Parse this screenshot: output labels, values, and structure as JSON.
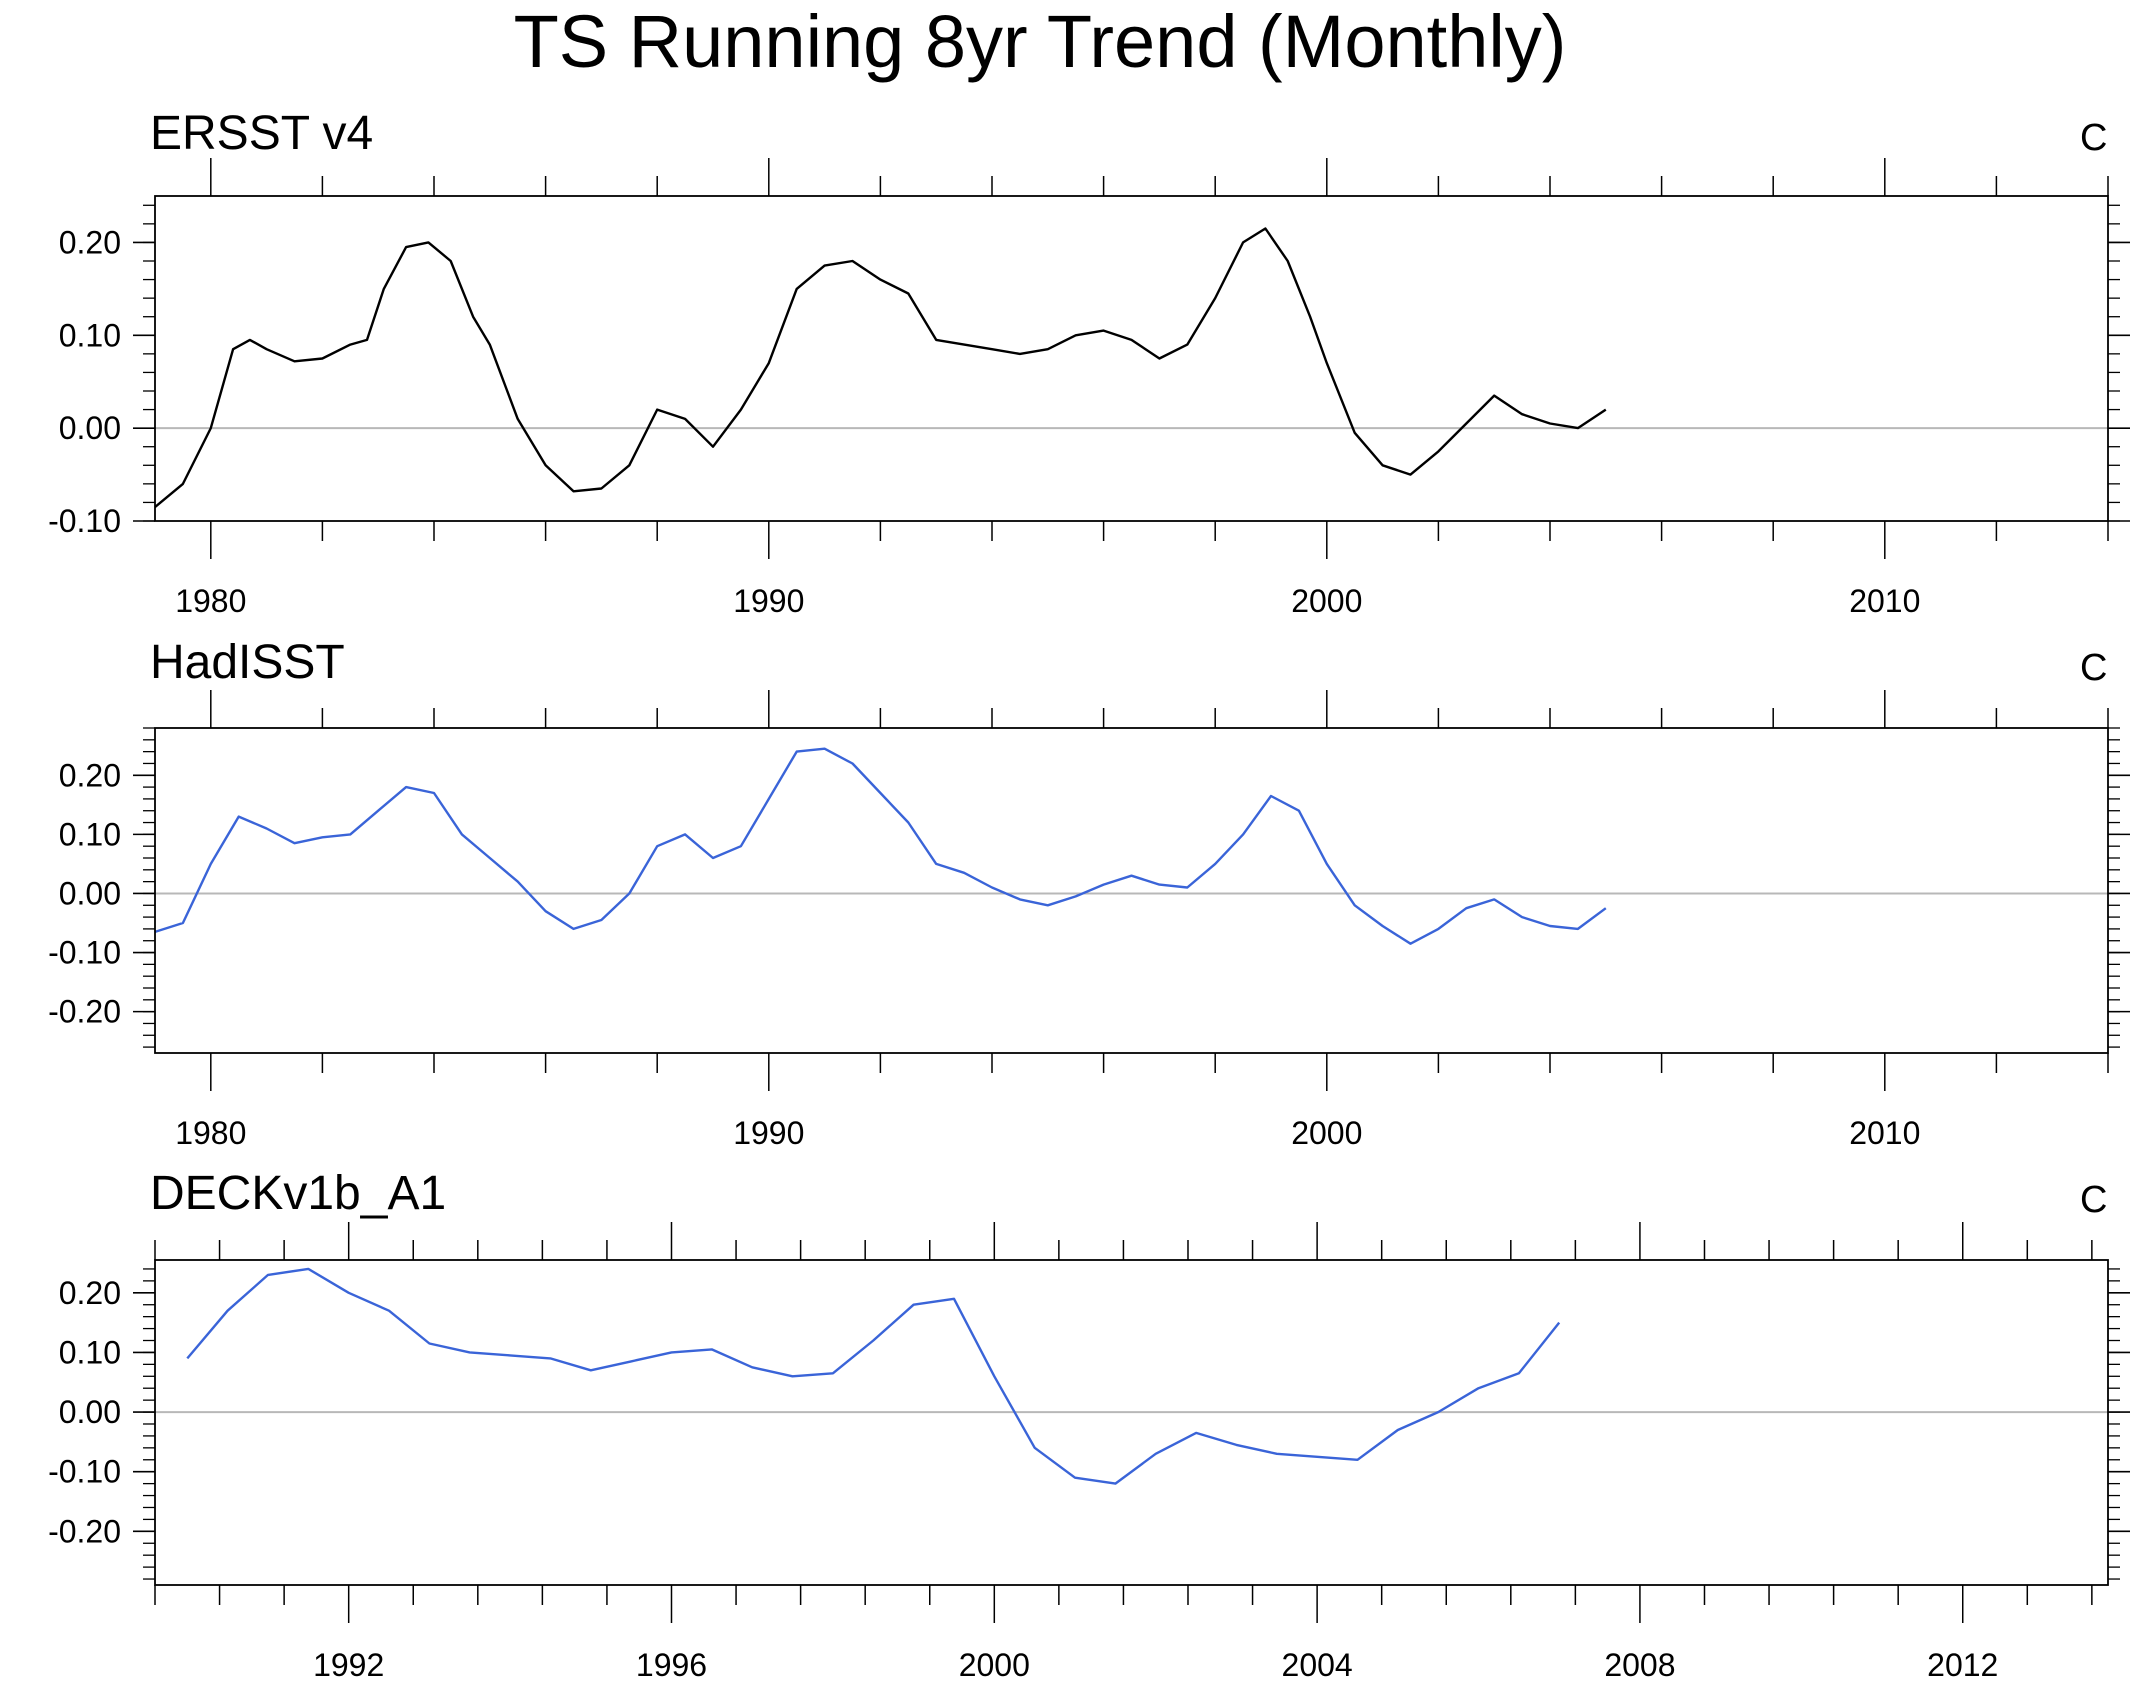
{
  "title": "TS Running 8yr Trend (Monthly)",
  "chart_data": [
    {
      "type": "line",
      "title": "ERSST v4",
      "units": "C",
      "color": "#000000",
      "xlim": [
        1979,
        2014
      ],
      "ylim": [
        -0.1,
        0.25
      ],
      "xticks": [
        1980,
        1990,
        2000,
        2010
      ],
      "yticks": [
        -0.1,
        0.0,
        0.1,
        0.2
      ],
      "ytick_labels": [
        "-0.10",
        "0.00",
        "0.10",
        "0.20"
      ],
      "x": [
        1979.0,
        1979.5,
        1980.0,
        1980.4,
        1980.7,
        1981.0,
        1981.5,
        1982.0,
        1982.5,
        1982.8,
        1983.1,
        1983.5,
        1983.9,
        1984.3,
        1984.7,
        1985.0,
        1985.5,
        1986.0,
        1986.5,
        1987.0,
        1987.5,
        1988.0,
        1988.5,
        1989.0,
        1989.5,
        1990.0,
        1990.5,
        1991.0,
        1991.5,
        1992.0,
        1992.5,
        1993.0,
        1993.5,
        1994.0,
        1994.5,
        1995.0,
        1995.5,
        1996.0,
        1996.5,
        1997.0,
        1997.5,
        1998.0,
        1998.5,
        1998.9,
        1999.3,
        1999.7,
        2000.0,
        2000.5,
        2001.0,
        2001.5,
        2002.0,
        2002.5,
        2003.0,
        2003.5,
        2004.0,
        2004.5,
        2005.0
      ],
      "y": [
        -0.085,
        -0.06,
        0.0,
        0.085,
        0.095,
        0.085,
        0.072,
        0.075,
        0.09,
        0.095,
        0.15,
        0.195,
        0.2,
        0.18,
        0.12,
        0.09,
        0.01,
        -0.04,
        -0.068,
        -0.065,
        -0.04,
        0.02,
        0.01,
        -0.02,
        0.02,
        0.07,
        0.15,
        0.175,
        0.18,
        0.16,
        0.145,
        0.095,
        0.09,
        0.085,
        0.08,
        0.085,
        0.1,
        0.105,
        0.095,
        0.075,
        0.09,
        0.14,
        0.2,
        0.215,
        0.18,
        0.12,
        0.07,
        -0.005,
        -0.04,
        -0.05,
        -0.025,
        0.005,
        0.035,
        0.015,
        0.005,
        0.0,
        0.02
      ]
    },
    {
      "type": "line",
      "title": "HadISST",
      "units": "C",
      "color": "#3a64d8",
      "xlim": [
        1979,
        2014
      ],
      "ylim": [
        -0.27,
        0.28
      ],
      "xticks": [
        1980,
        1990,
        2000,
        2010
      ],
      "yticks": [
        -0.2,
        -0.1,
        0.0,
        0.1,
        0.2
      ],
      "ytick_labels": [
        "-0.20",
        "-0.10",
        "0.00",
        "0.10",
        "0.20"
      ],
      "x": [
        1979.0,
        1979.5,
        1980.0,
        1980.5,
        1981.0,
        1981.5,
        1982.0,
        1982.5,
        1983.0,
        1983.5,
        1984.0,
        1984.5,
        1985.0,
        1985.5,
        1986.0,
        1986.5,
        1987.0,
        1987.5,
        1988.0,
        1988.5,
        1989.0,
        1989.5,
        1990.0,
        1990.5,
        1991.0,
        1991.5,
        1992.0,
        1992.5,
        1993.0,
        1993.5,
        1994.0,
        1994.5,
        1995.0,
        1995.5,
        1996.0,
        1996.5,
        1997.0,
        1997.5,
        1998.0,
        1998.5,
        1999.0,
        1999.5,
        2000.0,
        2000.5,
        2001.0,
        2001.5,
        2002.0,
        2002.5,
        2003.0,
        2003.5,
        2004.0,
        2004.5,
        2005.0
      ],
      "y": [
        -0.065,
        -0.05,
        0.05,
        0.13,
        0.11,
        0.085,
        0.095,
        0.1,
        0.14,
        0.18,
        0.17,
        0.1,
        0.06,
        0.02,
        -0.03,
        -0.06,
        -0.045,
        0.0,
        0.08,
        0.1,
        0.06,
        0.08,
        0.16,
        0.24,
        0.245,
        0.22,
        0.17,
        0.12,
        0.05,
        0.035,
        0.01,
        -0.01,
        -0.02,
        -0.005,
        0.015,
        0.03,
        0.015,
        0.01,
        0.05,
        0.1,
        0.165,
        0.14,
        0.05,
        -0.02,
        -0.055,
        -0.085,
        -0.06,
        -0.025,
        -0.01,
        -0.04,
        -0.055,
        -0.06,
        -0.025
      ]
    },
    {
      "type": "line",
      "title": "DECKv1b_A1",
      "units": "C",
      "color": "#3a64d8",
      "xlim": [
        1989.6,
        2013.8
      ],
      "ylim": [
        -0.29,
        0.255
      ],
      "xticks": [
        1992,
        1996,
        2000,
        2004,
        2008,
        2012
      ],
      "yticks": [
        -0.2,
        -0.1,
        0.0,
        0.1,
        0.2
      ],
      "ytick_labels": [
        "-0.20",
        "-0.10",
        "0.00",
        "0.10",
        "0.20"
      ],
      "x": [
        1990.0,
        1990.5,
        1991.0,
        1991.5,
        1992.0,
        1992.5,
        1993.0,
        1993.5,
        1994.0,
        1994.5,
        1995.0,
        1995.5,
        1996.0,
        1996.5,
        1997.0,
        1997.5,
        1998.0,
        1998.5,
        1999.0,
        1999.5,
        2000.0,
        2000.5,
        2001.0,
        2001.5,
        2002.0,
        2002.5,
        2003.0,
        2003.5,
        2004.0,
        2004.5,
        2005.0,
        2005.5,
        2006.0,
        2006.5,
        2007.0
      ],
      "y": [
        0.09,
        0.17,
        0.23,
        0.24,
        0.2,
        0.17,
        0.115,
        0.1,
        0.095,
        0.09,
        0.07,
        0.085,
        0.1,
        0.105,
        0.075,
        0.06,
        0.065,
        0.12,
        0.18,
        0.19,
        0.06,
        -0.06,
        -0.11,
        -0.12,
        -0.07,
        -0.035,
        -0.055,
        -0.07,
        -0.075,
        -0.08,
        -0.03,
        0.0,
        0.04,
        0.065,
        0.15
      ]
    }
  ]
}
